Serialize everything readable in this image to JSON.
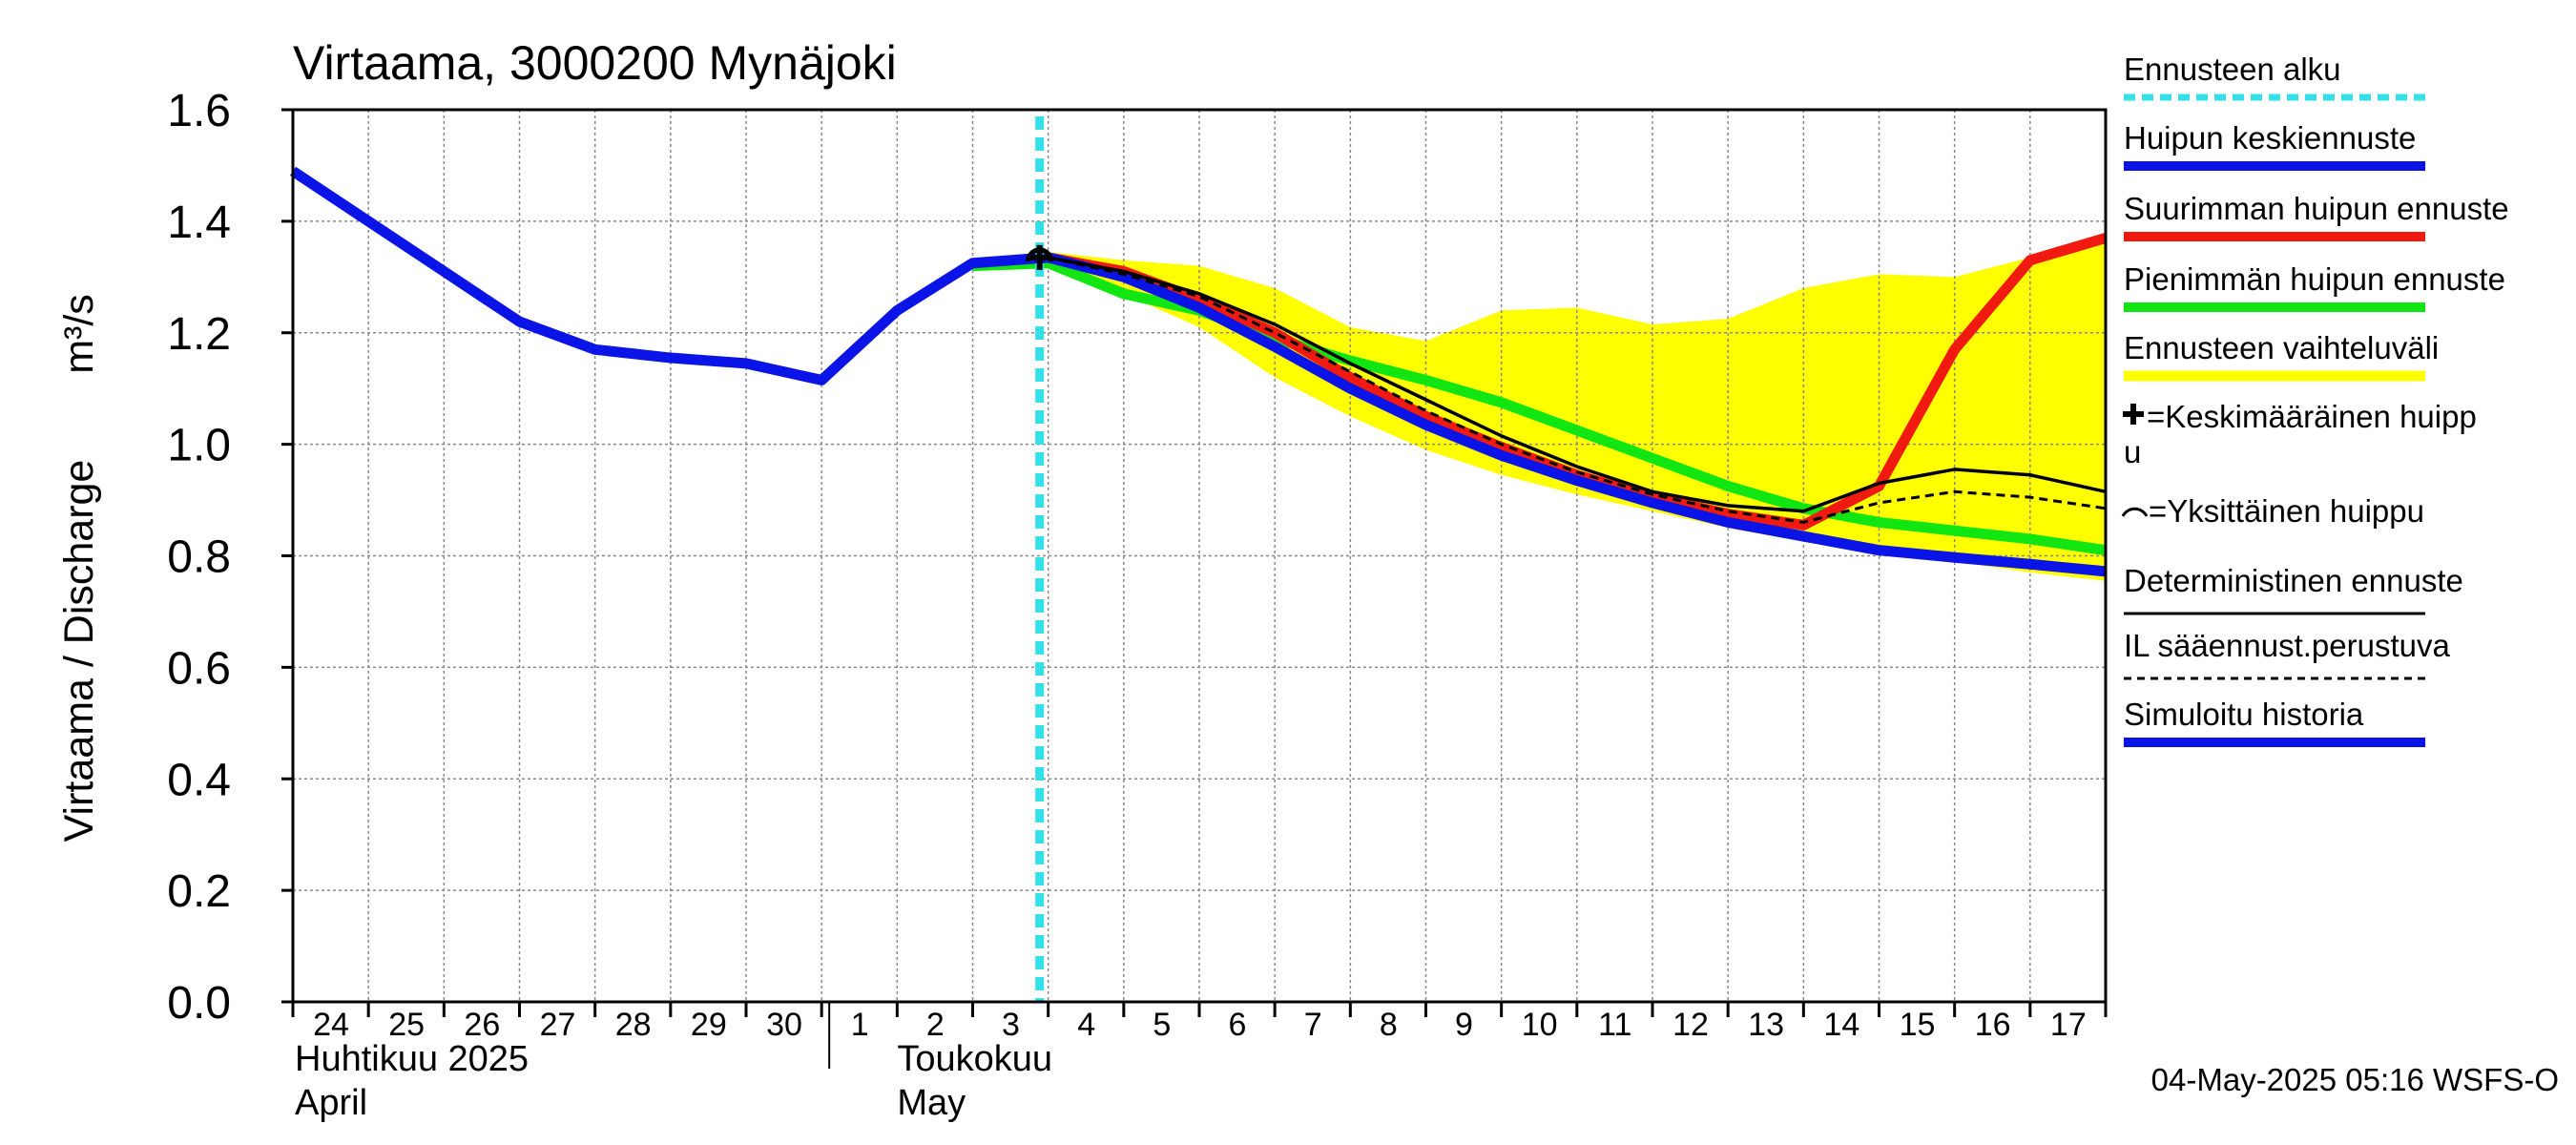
{
  "chart_data": {
    "type": "line",
    "title": "Virtaama, 3000200 Mynäjoki",
    "ylabel": "Virtaama / Discharge",
    "yunit": "m³/s",
    "ylim": [
      0.0,
      1.6
    ],
    "yticks": [
      "0.0",
      "0.2",
      "0.4",
      "0.6",
      "0.8",
      "1.0",
      "1.2",
      "1.4",
      "1.6"
    ],
    "xlim": [
      "2025-04-24",
      "2025-05-18"
    ],
    "xticks": [
      "24",
      "25",
      "26",
      "27",
      "28",
      "29",
      "30",
      "1",
      "2",
      "3",
      "4",
      "5",
      "6",
      "7",
      "8",
      "9",
      "10",
      "11",
      "12",
      "13",
      "14",
      "15",
      "16",
      "17"
    ],
    "month_labels": [
      {
        "fi": "Huhtikuu  2025",
        "en": "April"
      },
      {
        "fi": "Toukokuu",
        "en": "May"
      }
    ],
    "grid": true,
    "legend_placement": "right",
    "forecast_start": "2025-05-04",
    "timestamp": "04-May-2025 05:16 WSFS-O",
    "legend": [
      {
        "label": "Ennusteen alku",
        "color": "#33e0e8",
        "style": "dashed"
      },
      {
        "label": "Huipun keskiennuste",
        "color": "#0a14e6",
        "style": "solid"
      },
      {
        "label": "Suurimman huipun ennuste",
        "color": "#f01a10",
        "style": "solid"
      },
      {
        "label": "Pienimmän huipun ennuste",
        "color": "#12e612",
        "style": "solid"
      },
      {
        "label": "Ennusteen vaihteluväli",
        "color": "#ffff00",
        "style": "band"
      },
      {
        "label": "=Keskimääräinen huipp",
        "label2": "u",
        "color": "#000000",
        "style": "plus"
      },
      {
        "label": "=Yksittäinen huippu",
        "color": "#000000",
        "style": "arc"
      },
      {
        "label": "Deterministinen ennuste",
        "color": "#000000",
        "style": "thin"
      },
      {
        "label": "IL sääennust.perustuva",
        "color": "#000000",
        "style": "dotted"
      },
      {
        "label": "Simuloitu historia",
        "color": "#0a14e6",
        "style": "solid"
      }
    ],
    "series": [
      {
        "name": "Simuloitu historia",
        "color": "#0a14e6",
        "style": "thick",
        "x": [
          "2025-04-24",
          "2025-04-25",
          "2025-04-26",
          "2025-04-27",
          "2025-04-28",
          "2025-04-29",
          "2025-04-30",
          "2025-05-01",
          "2025-05-02",
          "2025-05-03",
          "2025-05-04"
        ],
        "y": [
          1.49,
          1.4,
          1.31,
          1.22,
          1.17,
          1.155,
          1.145,
          1.115,
          1.24,
          1.325,
          1.335
        ]
      },
      {
        "name": "Ennusteen vaihteluväli (upper)",
        "color": "#ffff00",
        "style": "band_upper",
        "x": [
          "2025-05-04",
          "2025-05-05",
          "2025-05-06",
          "2025-05-07",
          "2025-05-08",
          "2025-05-09",
          "2025-05-10",
          "2025-05-11",
          "2025-05-12",
          "2025-05-13",
          "2025-05-14",
          "2025-05-15",
          "2025-05-16",
          "2025-05-17",
          "2025-05-18"
        ],
        "y": [
          1.345,
          1.33,
          1.32,
          1.28,
          1.21,
          1.185,
          1.24,
          1.245,
          1.215,
          1.225,
          1.28,
          1.305,
          1.3,
          1.335,
          1.37
        ]
      },
      {
        "name": "Ennusteen vaihteluväli (lower)",
        "color": "#ffff00",
        "style": "band_lower",
        "x": [
          "2025-05-04",
          "2025-05-05",
          "2025-05-06",
          "2025-05-07",
          "2025-05-08",
          "2025-05-09",
          "2025-05-10",
          "2025-05-11",
          "2025-05-12",
          "2025-05-13",
          "2025-05-14",
          "2025-05-15",
          "2025-05-16",
          "2025-05-17",
          "2025-05-18"
        ],
        "y": [
          1.32,
          1.27,
          1.21,
          1.12,
          1.05,
          0.99,
          0.945,
          0.91,
          0.88,
          0.85,
          0.825,
          0.805,
          0.79,
          0.77,
          0.755
        ]
      },
      {
        "name": "Pienimmän huipun ennuste",
        "color": "#12e612",
        "style": "thick",
        "x": [
          "2025-05-03",
          "2025-05-04",
          "2025-05-05",
          "2025-05-06",
          "2025-05-07",
          "2025-05-08",
          "2025-05-09",
          "2025-05-10",
          "2025-05-11",
          "2025-05-12",
          "2025-05-13",
          "2025-05-14",
          "2025-05-15",
          "2025-05-16",
          "2025-05-17",
          "2025-05-18"
        ],
        "y": [
          1.32,
          1.325,
          1.27,
          1.24,
          1.19,
          1.15,
          1.115,
          1.075,
          1.025,
          0.975,
          0.925,
          0.885,
          0.86,
          0.845,
          0.83,
          0.81
        ]
      },
      {
        "name": "Suurimman huipun ennuste",
        "color": "#f01a10",
        "style": "thick",
        "x": [
          "2025-05-04",
          "2025-05-05",
          "2025-05-06",
          "2025-05-07",
          "2025-05-08",
          "2025-05-09",
          "2025-05-10",
          "2025-05-11",
          "2025-05-12",
          "2025-05-13",
          "2025-05-14",
          "2025-05-15",
          "2025-05-16",
          "2025-05-17",
          "2025-05-18"
        ],
        "y": [
          1.335,
          1.31,
          1.26,
          1.2,
          1.12,
          1.05,
          0.995,
          0.945,
          0.905,
          0.875,
          0.855,
          0.925,
          1.17,
          1.33,
          1.37
        ]
      },
      {
        "name": "Huipun keskiennuste",
        "color": "#0a14e6",
        "style": "thick",
        "x": [
          "2025-05-04",
          "2025-05-05",
          "2025-05-06",
          "2025-05-07",
          "2025-05-08",
          "2025-05-09",
          "2025-05-10",
          "2025-05-11",
          "2025-05-12",
          "2025-05-13",
          "2025-05-14",
          "2025-05-15",
          "2025-05-16",
          "2025-05-17",
          "2025-05-18"
        ],
        "y": [
          1.335,
          1.3,
          1.245,
          1.175,
          1.1,
          1.035,
          0.98,
          0.935,
          0.895,
          0.86,
          0.835,
          0.81,
          0.797,
          0.785,
          0.772
        ]
      },
      {
        "name": "Deterministinen ennuste",
        "color": "#000000",
        "style": "thin",
        "x": [
          "2025-05-04",
          "2025-05-05",
          "2025-05-06",
          "2025-05-07",
          "2025-05-08",
          "2025-05-09",
          "2025-05-10",
          "2025-05-11",
          "2025-05-12",
          "2025-05-13",
          "2025-05-14",
          "2025-05-15",
          "2025-05-16",
          "2025-05-17",
          "2025-05-18"
        ],
        "y": [
          1.335,
          1.31,
          1.27,
          1.215,
          1.145,
          1.08,
          1.015,
          0.96,
          0.915,
          0.89,
          0.88,
          0.93,
          0.955,
          0.945,
          0.915
        ]
      },
      {
        "name": "IL sääennust.perustuva",
        "color": "#000000",
        "style": "dotted",
        "x": [
          "2025-05-04",
          "2025-05-05",
          "2025-05-06",
          "2025-05-07",
          "2025-05-08",
          "2025-05-09",
          "2025-05-10",
          "2025-05-11",
          "2025-05-12",
          "2025-05-13",
          "2025-05-14",
          "2025-05-15",
          "2025-05-16",
          "2025-05-17",
          "2025-05-18"
        ],
        "y": [
          1.335,
          1.305,
          1.265,
          1.2,
          1.13,
          1.06,
          1.0,
          0.95,
          0.91,
          0.88,
          0.86,
          0.895,
          0.915,
          0.905,
          0.885
        ]
      }
    ],
    "markers": [
      {
        "name": "Keskimääräinen huippu",
        "symbol": "plus",
        "x": "2025-05-04",
        "y": 1.335
      },
      {
        "name": "Yksittäinen huippu",
        "symbol": "arc",
        "x": "2025-05-04",
        "y": 1.335
      }
    ]
  }
}
